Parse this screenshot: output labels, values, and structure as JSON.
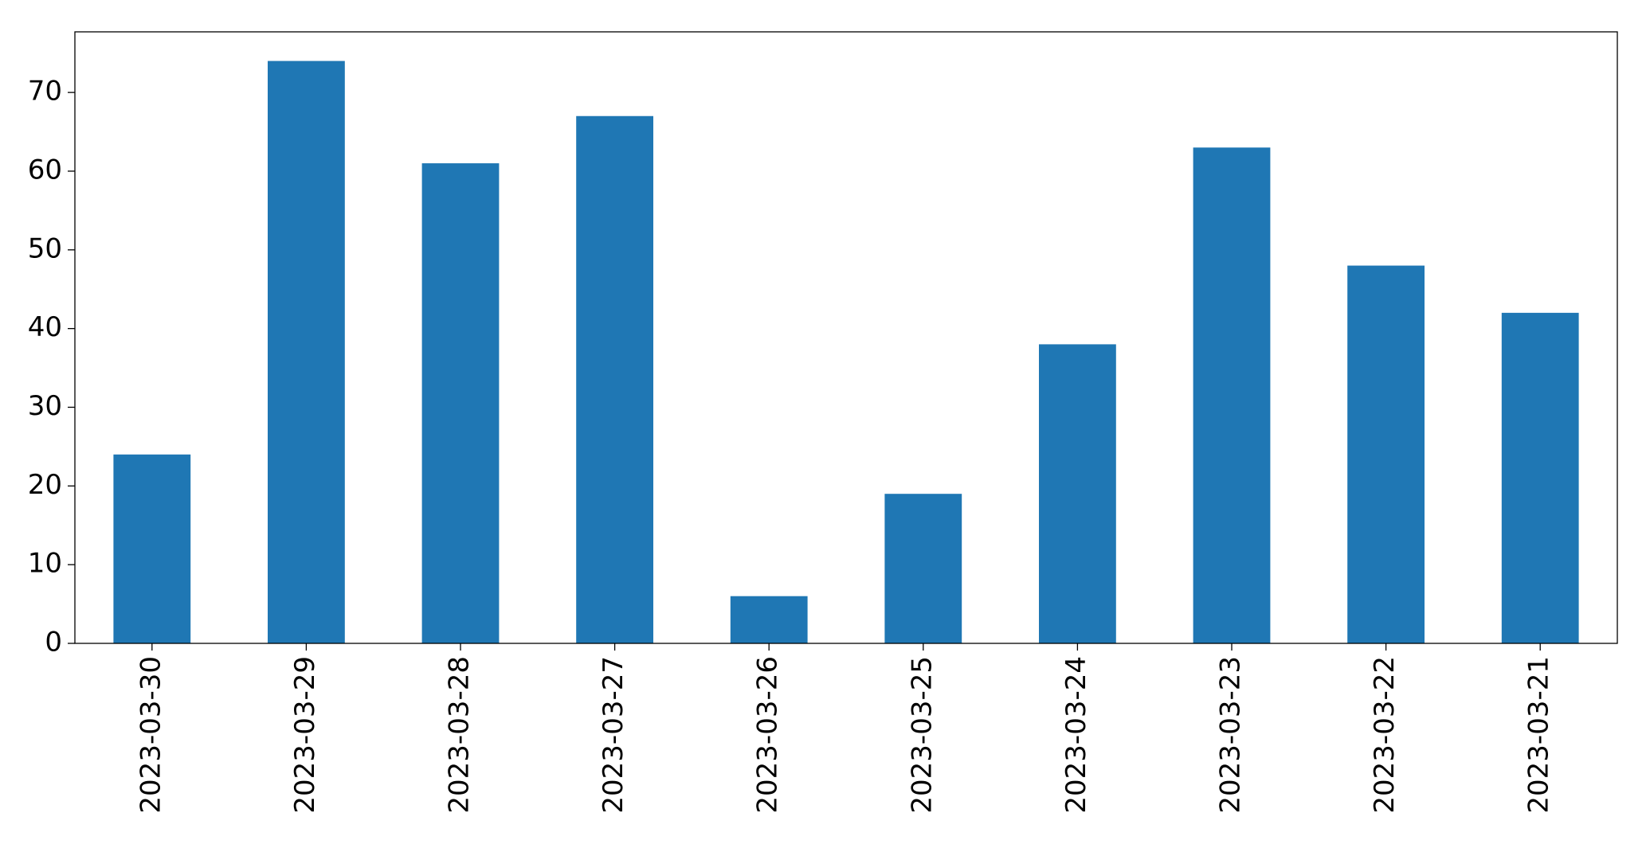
{
  "chart_data": {
    "type": "bar",
    "categories": [
      "2023-03-30",
      "2023-03-29",
      "2023-03-28",
      "2023-03-27",
      "2023-03-26",
      "2023-03-25",
      "2023-03-24",
      "2023-03-23",
      "2023-03-22",
      "2023-03-21"
    ],
    "values": [
      24,
      74,
      61,
      67,
      6,
      19,
      38,
      63,
      48,
      42
    ],
    "color": "#1f77b4",
    "ylim": [
      0,
      77.7
    ],
    "yticks": [
      0,
      10,
      20,
      30,
      40,
      50,
      60,
      70
    ],
    "grid": false
  }
}
